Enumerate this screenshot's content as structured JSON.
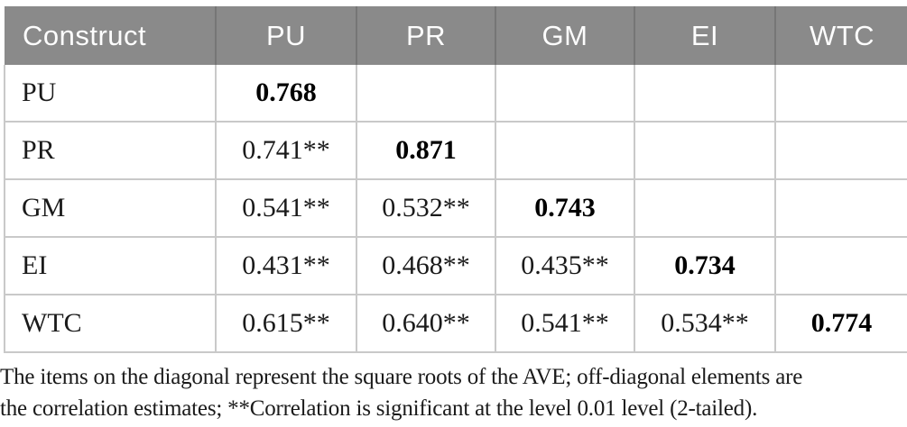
{
  "table": {
    "columns": [
      "Construct",
      "PU",
      "PR",
      "GM",
      "EI",
      "WTC"
    ],
    "rows": [
      {
        "label": "PU",
        "cells": [
          "0.768",
          "",
          "",
          "",
          ""
        ]
      },
      {
        "label": "PR",
        "cells": [
          "0.741**",
          "0.871",
          "",
          "",
          ""
        ]
      },
      {
        "label": "GM",
        "cells": [
          "0.541**",
          "0.532**",
          "0.743",
          "",
          ""
        ]
      },
      {
        "label": "EI",
        "cells": [
          "0.431**",
          "0.468**",
          "0.435**",
          "0.734",
          ""
        ]
      },
      {
        "label": "WTC",
        "cells": [
          "0.615**",
          "0.640**",
          "0.541**",
          "0.534**",
          "0.774"
        ]
      }
    ],
    "diagonal_bold_values": [
      "0.768",
      "0.871",
      "0.743",
      "0.734",
      "0.774"
    ]
  },
  "footnote": {
    "line1": "The items on the diagonal represent the square roots of the AVE; off-diagonal elements are",
    "line2": "the correlation estimates; **Correlation is significant at the level 0.01 level (2-tailed)."
  },
  "colors": {
    "header_background": "#8a8a8a",
    "header_text": "#fdfdfd",
    "header_divider": "#767676",
    "body_border": "#c9c9c9",
    "body_text": "#1a1a1a"
  }
}
